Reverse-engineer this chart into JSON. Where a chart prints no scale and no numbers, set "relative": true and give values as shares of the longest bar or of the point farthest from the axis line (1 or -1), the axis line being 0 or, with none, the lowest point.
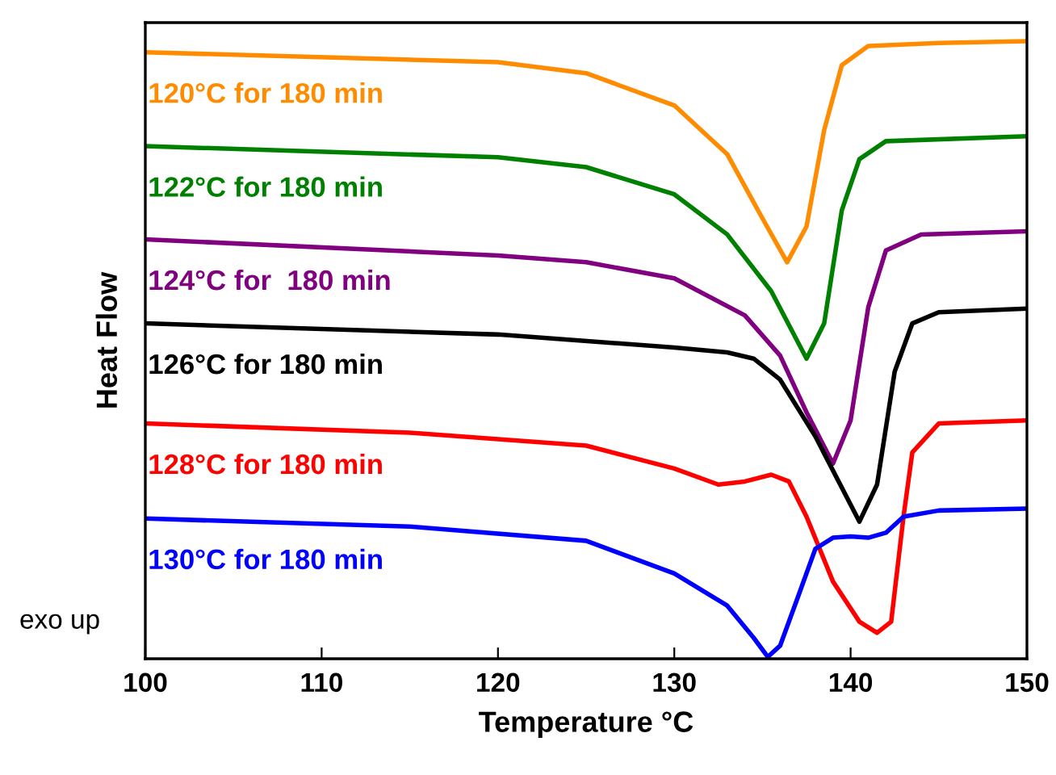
{
  "chart_data": {
    "type": "line",
    "relative": true,
    "xlabel": "Temperature °C",
    "ylabel": "Heat Flow",
    "xlim": [
      100,
      150
    ],
    "xticks": [
      100,
      110,
      120,
      130,
      140,
      150
    ],
    "grid": false,
    "legend": false,
    "tick_labels": "x",
    "annotations": [
      "exo up"
    ],
    "series": [
      {
        "name": "120°C for 180 min",
        "color": "#ff8c00",
        "x": [
          100,
          120,
          125,
          130,
          133,
          135,
          136.4,
          137.5,
          138.5,
          139.5,
          141,
          145,
          150
        ],
        "values": [
          0.982,
          0.966,
          0.948,
          0.896,
          0.817,
          0.713,
          0.642,
          0.7,
          0.856,
          0.961,
          0.992,
          0.997,
          1.0
        ]
      },
      {
        "name": "122°C for 180 min",
        "color": "#008000",
        "x": [
          100,
          120,
          125,
          130,
          133,
          135.5,
          137.5,
          138.5,
          139.5,
          140.5,
          142,
          150
        ],
        "values": [
          0.83,
          0.812,
          0.796,
          0.752,
          0.687,
          0.595,
          0.486,
          0.543,
          0.726,
          0.809,
          0.838,
          0.846
        ]
      },
      {
        "name": "124°C for  180 min",
        "color": "#800080",
        "x": [
          100,
          120,
          125,
          130,
          134,
          136,
          137.5,
          139,
          140,
          141,
          142,
          144,
          150
        ],
        "values": [
          0.679,
          0.653,
          0.642,
          0.616,
          0.556,
          0.491,
          0.399,
          0.316,
          0.386,
          0.569,
          0.661,
          0.687,
          0.692
        ]
      },
      {
        "name": "126°C for 180 min",
        "color": "#000000",
        "x": [
          100,
          120,
          130,
          133,
          134.5,
          136,
          138,
          140.5,
          141.5,
          142.5,
          143.5,
          145,
          150
        ],
        "values": [
          0.543,
          0.525,
          0.504,
          0.496,
          0.486,
          0.452,
          0.36,
          0.222,
          0.282,
          0.465,
          0.543,
          0.561,
          0.567
        ]
      },
      {
        "name": "128°C for 180 min",
        "color": "#ff0000",
        "x": [
          100,
          115,
          125,
          130,
          132.5,
          134,
          135.5,
          136.5,
          137.5,
          139,
          140.5,
          141.5,
          142.3,
          143,
          143.5,
          145,
          150
        ],
        "values": [
          0.381,
          0.366,
          0.345,
          0.308,
          0.282,
          0.287,
          0.298,
          0.287,
          0.23,
          0.125,
          0.06,
          0.042,
          0.06,
          0.23,
          0.334,
          0.381,
          0.386
        ]
      },
      {
        "name": "130°C for 180 min",
        "color": "#0000ff",
        "x": [
          100,
          115,
          125,
          130,
          133,
          134.5,
          135.3,
          136,
          137,
          138,
          139,
          140,
          141,
          142,
          143,
          145,
          150
        ],
        "values": [
          0.227,
          0.214,
          0.191,
          0.138,
          0.086,
          0.034,
          0.003,
          0.021,
          0.099,
          0.178,
          0.196,
          0.198,
          0.196,
          0.204,
          0.23,
          0.24,
          0.243
        ]
      }
    ]
  }
}
